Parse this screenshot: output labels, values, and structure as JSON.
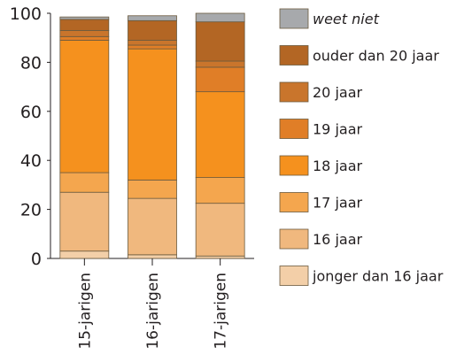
{
  "chart_data": {
    "type": "bar",
    "stacked": true,
    "categories": [
      "15-jarigen",
      "16-jarigen",
      "17-jarigen"
    ],
    "ylim": [
      0,
      100
    ],
    "yticks": [
      0,
      20,
      40,
      60,
      80,
      100
    ],
    "grid": false,
    "legend_position": "right",
    "series": [
      {
        "name": "jonger dan 16 jaar",
        "color": "#f3cfa8",
        "values": [
          3,
          1.5,
          1
        ]
      },
      {
        "name": "16 jaar",
        "color": "#f0b87e",
        "values": [
          24,
          23,
          21.5
        ]
      },
      {
        "name": "17 jaar",
        "color": "#f4a64e",
        "values": [
          8,
          7.5,
          10.5
        ]
      },
      {
        "name": "18 jaar",
        "color": "#f5911e",
        "values": [
          54,
          53.5,
          35
        ]
      },
      {
        "name": "19 jaar",
        "color": "#e07e27",
        "values": [
          1.5,
          1.5,
          10
        ]
      },
      {
        "name": "20 jaar",
        "color": "#c9752c",
        "values": [
          2.5,
          2,
          2.5
        ]
      },
      {
        "name": "ouder dan 20 jaar",
        "color": "#b36624",
        "values": [
          4.5,
          8,
          16
        ]
      },
      {
        "name": "weet niet",
        "color": "#a7a9ac",
        "italic": true,
        "values": [
          1,
          2,
          3.5
        ]
      }
    ]
  }
}
